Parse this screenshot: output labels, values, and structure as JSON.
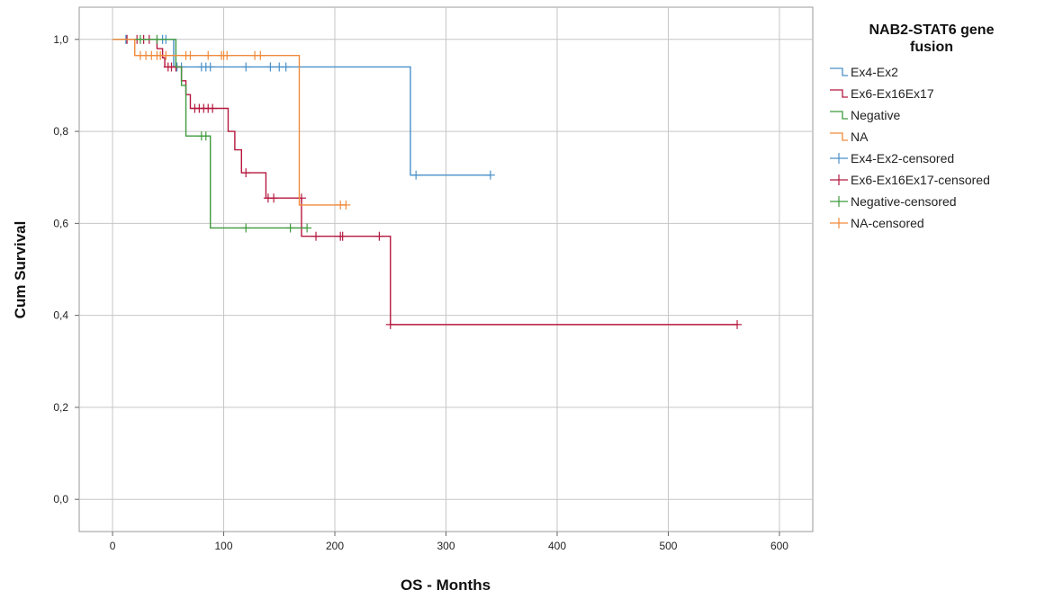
{
  "chart_data": {
    "type": "line",
    "subtype": "kaplan-meier step",
    "xlabel": "OS - Months",
    "ylabel": "Cum Survival",
    "xlim": [
      -30,
      630
    ],
    "ylim": [
      -0.07,
      1.07
    ],
    "x_ticks": [
      0,
      100,
      200,
      300,
      400,
      500,
      600
    ],
    "x_tick_labels": [
      "0",
      "100",
      "200",
      "300",
      "400",
      "500",
      "600"
    ],
    "y_ticks": [
      0,
      0.2,
      0.4,
      0.6,
      0.8,
      1.0
    ],
    "y_tick_labels": [
      "0,0",
      "0,2",
      "0,4",
      "0,6",
      "0,8",
      "1,0"
    ],
    "grid": true,
    "legend": {
      "title": "NAB2-STAT6 gene fusion",
      "title_lines": [
        "NAB2-STAT6 gene",
        "fusion"
      ],
      "placement": "right",
      "entries": [
        "Ex4-Ex2",
        "Ex6-Ex16Ex17",
        "Negative",
        "NA",
        "Ex4-Ex2-censored",
        "Ex6-Ex16Ex17-censored",
        "Negative-censored",
        "NA-censored"
      ]
    },
    "series": [
      {
        "name": "Ex4-Ex2",
        "color": "#4a90c8",
        "steps": [
          [
            0,
            1.0
          ],
          [
            55,
            0.94
          ],
          [
            268,
            0.705
          ],
          [
            340,
            0.705
          ]
        ],
        "censored": [
          [
            12,
            1.0
          ],
          [
            45,
            1.0
          ],
          [
            48,
            1.0
          ],
          [
            58,
            0.94
          ],
          [
            62,
            0.94
          ],
          [
            80,
            0.94
          ],
          [
            84,
            0.94
          ],
          [
            88,
            0.94
          ],
          [
            120,
            0.94
          ],
          [
            142,
            0.94
          ],
          [
            150,
            0.94
          ],
          [
            156,
            0.94
          ],
          [
            273,
            0.705
          ],
          [
            340,
            0.705
          ]
        ]
      },
      {
        "name": "Ex6-Ex16Ex17",
        "color": "#b5183f",
        "steps": [
          [
            0,
            1.0
          ],
          [
            40,
            0.98
          ],
          [
            45,
            0.96
          ],
          [
            47,
            0.94
          ],
          [
            62,
            0.91
          ],
          [
            66,
            0.88
          ],
          [
            70,
            0.85
          ],
          [
            104,
            0.8
          ],
          [
            110,
            0.76
          ],
          [
            116,
            0.71
          ],
          [
            138,
            0.655
          ],
          [
            170,
            0.572
          ],
          [
            250,
            0.38
          ],
          [
            562,
            0.38
          ]
        ],
        "censored": [
          [
            13,
            1.0
          ],
          [
            22,
            1.0
          ],
          [
            28,
            1.0
          ],
          [
            33,
            1.0
          ],
          [
            50,
            0.94
          ],
          [
            53,
            0.94
          ],
          [
            57,
            0.94
          ],
          [
            74,
            0.85
          ],
          [
            78,
            0.85
          ],
          [
            82,
            0.85
          ],
          [
            86,
            0.85
          ],
          [
            90,
            0.85
          ],
          [
            120,
            0.71
          ],
          [
            140,
            0.655
          ],
          [
            145,
            0.655
          ],
          [
            170,
            0.655
          ],
          [
            183,
            0.572
          ],
          [
            205,
            0.572
          ],
          [
            207,
            0.572
          ],
          [
            240,
            0.572
          ],
          [
            250,
            0.38
          ],
          [
            562,
            0.38
          ]
        ]
      },
      {
        "name": "Negative",
        "color": "#3f9a3f",
        "steps": [
          [
            0,
            1.0
          ],
          [
            57,
            0.94
          ],
          [
            62,
            0.9
          ],
          [
            66,
            0.79
          ],
          [
            88,
            0.59
          ],
          [
            175,
            0.59
          ]
        ],
        "censored": [
          [
            25,
            1.0
          ],
          [
            40,
            1.0
          ],
          [
            80,
            0.79
          ],
          [
            84,
            0.79
          ],
          [
            120,
            0.59
          ],
          [
            160,
            0.59
          ],
          [
            175,
            0.59
          ]
        ]
      },
      {
        "name": "NA",
        "color": "#f08a3c",
        "steps": [
          [
            0,
            1.0
          ],
          [
            20,
            0.965
          ],
          [
            168,
            0.64
          ],
          [
            210,
            0.64
          ]
        ],
        "censored": [
          [
            25,
            0.965
          ],
          [
            30,
            0.965
          ],
          [
            35,
            0.965
          ],
          [
            40,
            0.965
          ],
          [
            43,
            0.965
          ],
          [
            48,
            0.965
          ],
          [
            66,
            0.965
          ],
          [
            70,
            0.965
          ],
          [
            86,
            0.965
          ],
          [
            98,
            0.965
          ],
          [
            100,
            0.965
          ],
          [
            103,
            0.965
          ],
          [
            128,
            0.965
          ],
          [
            133,
            0.965
          ],
          [
            205,
            0.64
          ],
          [
            210,
            0.64
          ]
        ]
      }
    ]
  }
}
